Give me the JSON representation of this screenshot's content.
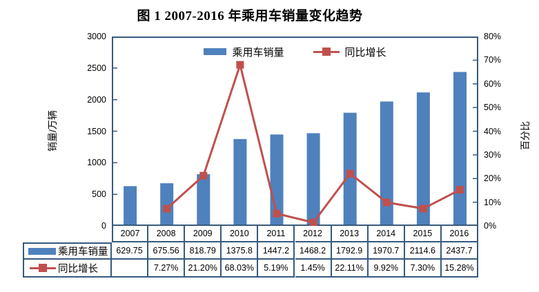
{
  "title": "图 1  2007-2016 年乘用车销量变化趋势",
  "colors": {
    "bar": "#4F81BD",
    "line": "#C0504D",
    "axis": "#375A7D",
    "table_border": "#375A7D",
    "background": "#FFFFFF",
    "text": "#000000"
  },
  "legend": {
    "position": "top-inside",
    "items": [
      {
        "label": "乘用车销量",
        "type": "bar-swatch"
      },
      {
        "label": "同比增长",
        "type": "line-marker"
      }
    ]
  },
  "chart_data": {
    "type": "bar+line-combo",
    "title": "图 1  2007-2016 年乘用车销量变化趋势",
    "categories": [
      "2007",
      "2008",
      "2009",
      "2010",
      "2011",
      "2012",
      "2013",
      "2014",
      "2015",
      "2016"
    ],
    "series": [
      {
        "name": "乘用车销量",
        "chart": "bar",
        "axis": "left",
        "color": "#4F81BD",
        "values": [
          629.75,
          675.56,
          818.79,
          1375.8,
          1447.2,
          1468.2,
          1792.9,
          1970.7,
          2114.6,
          2437.7
        ],
        "labels": [
          "629.75",
          "675.56",
          "818.79",
          "1375.8",
          "1447.2",
          "1468.2",
          "1792.9",
          "1970.7",
          "2114.6",
          "2437.7"
        ]
      },
      {
        "name": "同比增长",
        "chart": "line",
        "axis": "right",
        "color": "#C0504D",
        "values": [
          null,
          7.27,
          21.2,
          68.03,
          5.19,
          1.45,
          22.11,
          9.92,
          7.3,
          15.28
        ],
        "labels": [
          "",
          "7.27%",
          "21.20%",
          "68.03%",
          "5.19%",
          "1.45%",
          "22.11%",
          "9.92%",
          "7.30%",
          "15.28%"
        ]
      }
    ],
    "left_axis": {
      "title": "销量/万辆",
      "min": 0,
      "max": 3000,
      "step": 500,
      "ticks": [
        "0",
        "500",
        "1000",
        "1500",
        "2000",
        "2500",
        "3000"
      ]
    },
    "right_axis": {
      "title": "百分比",
      "min": 0,
      "max": 80,
      "step": 10,
      "ticks": [
        "0%",
        "10%",
        "20%",
        "30%",
        "40%",
        "50%",
        "60%",
        "70%",
        "80%"
      ]
    },
    "grid": "off",
    "legend_position": "top-inside",
    "data_table": "shown-below-plot"
  }
}
